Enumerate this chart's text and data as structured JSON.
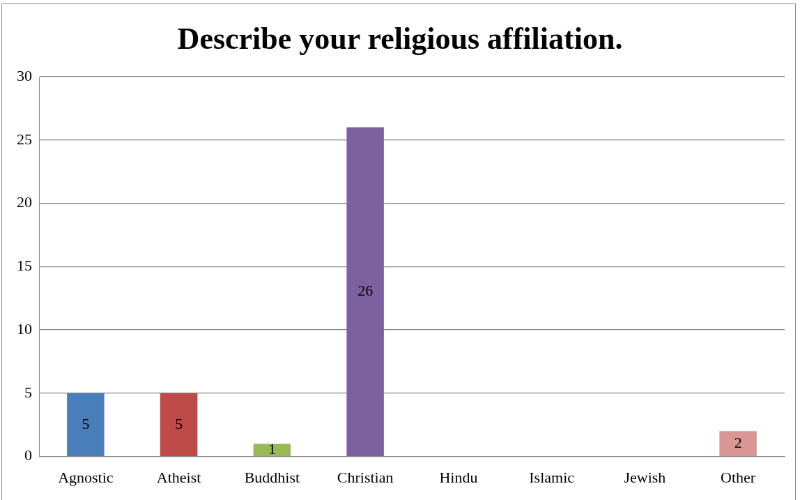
{
  "chart_data": {
    "type": "bar",
    "title": "Describe your religious affiliation.",
    "categories": [
      "Agnostic",
      "Atheist",
      "Buddhist",
      "Christian",
      "Hindu",
      "Islamic",
      "Jewish",
      "Other"
    ],
    "values": [
      5,
      5,
      1,
      26,
      0,
      0,
      0,
      2
    ],
    "value_labels": [
      "5",
      "5",
      "1",
      "26",
      null,
      null,
      null,
      "2"
    ],
    "colors": [
      "#4a7ebb",
      "#be4b48",
      "#98b954",
      "#7d60a0",
      "#46aac5",
      "#f79646",
      "#2c4d75",
      "#d99694"
    ],
    "ylim": [
      0,
      30
    ],
    "yticks": [
      0,
      5,
      10,
      15,
      20,
      25,
      30
    ],
    "grid": "y",
    "legend": false
  }
}
